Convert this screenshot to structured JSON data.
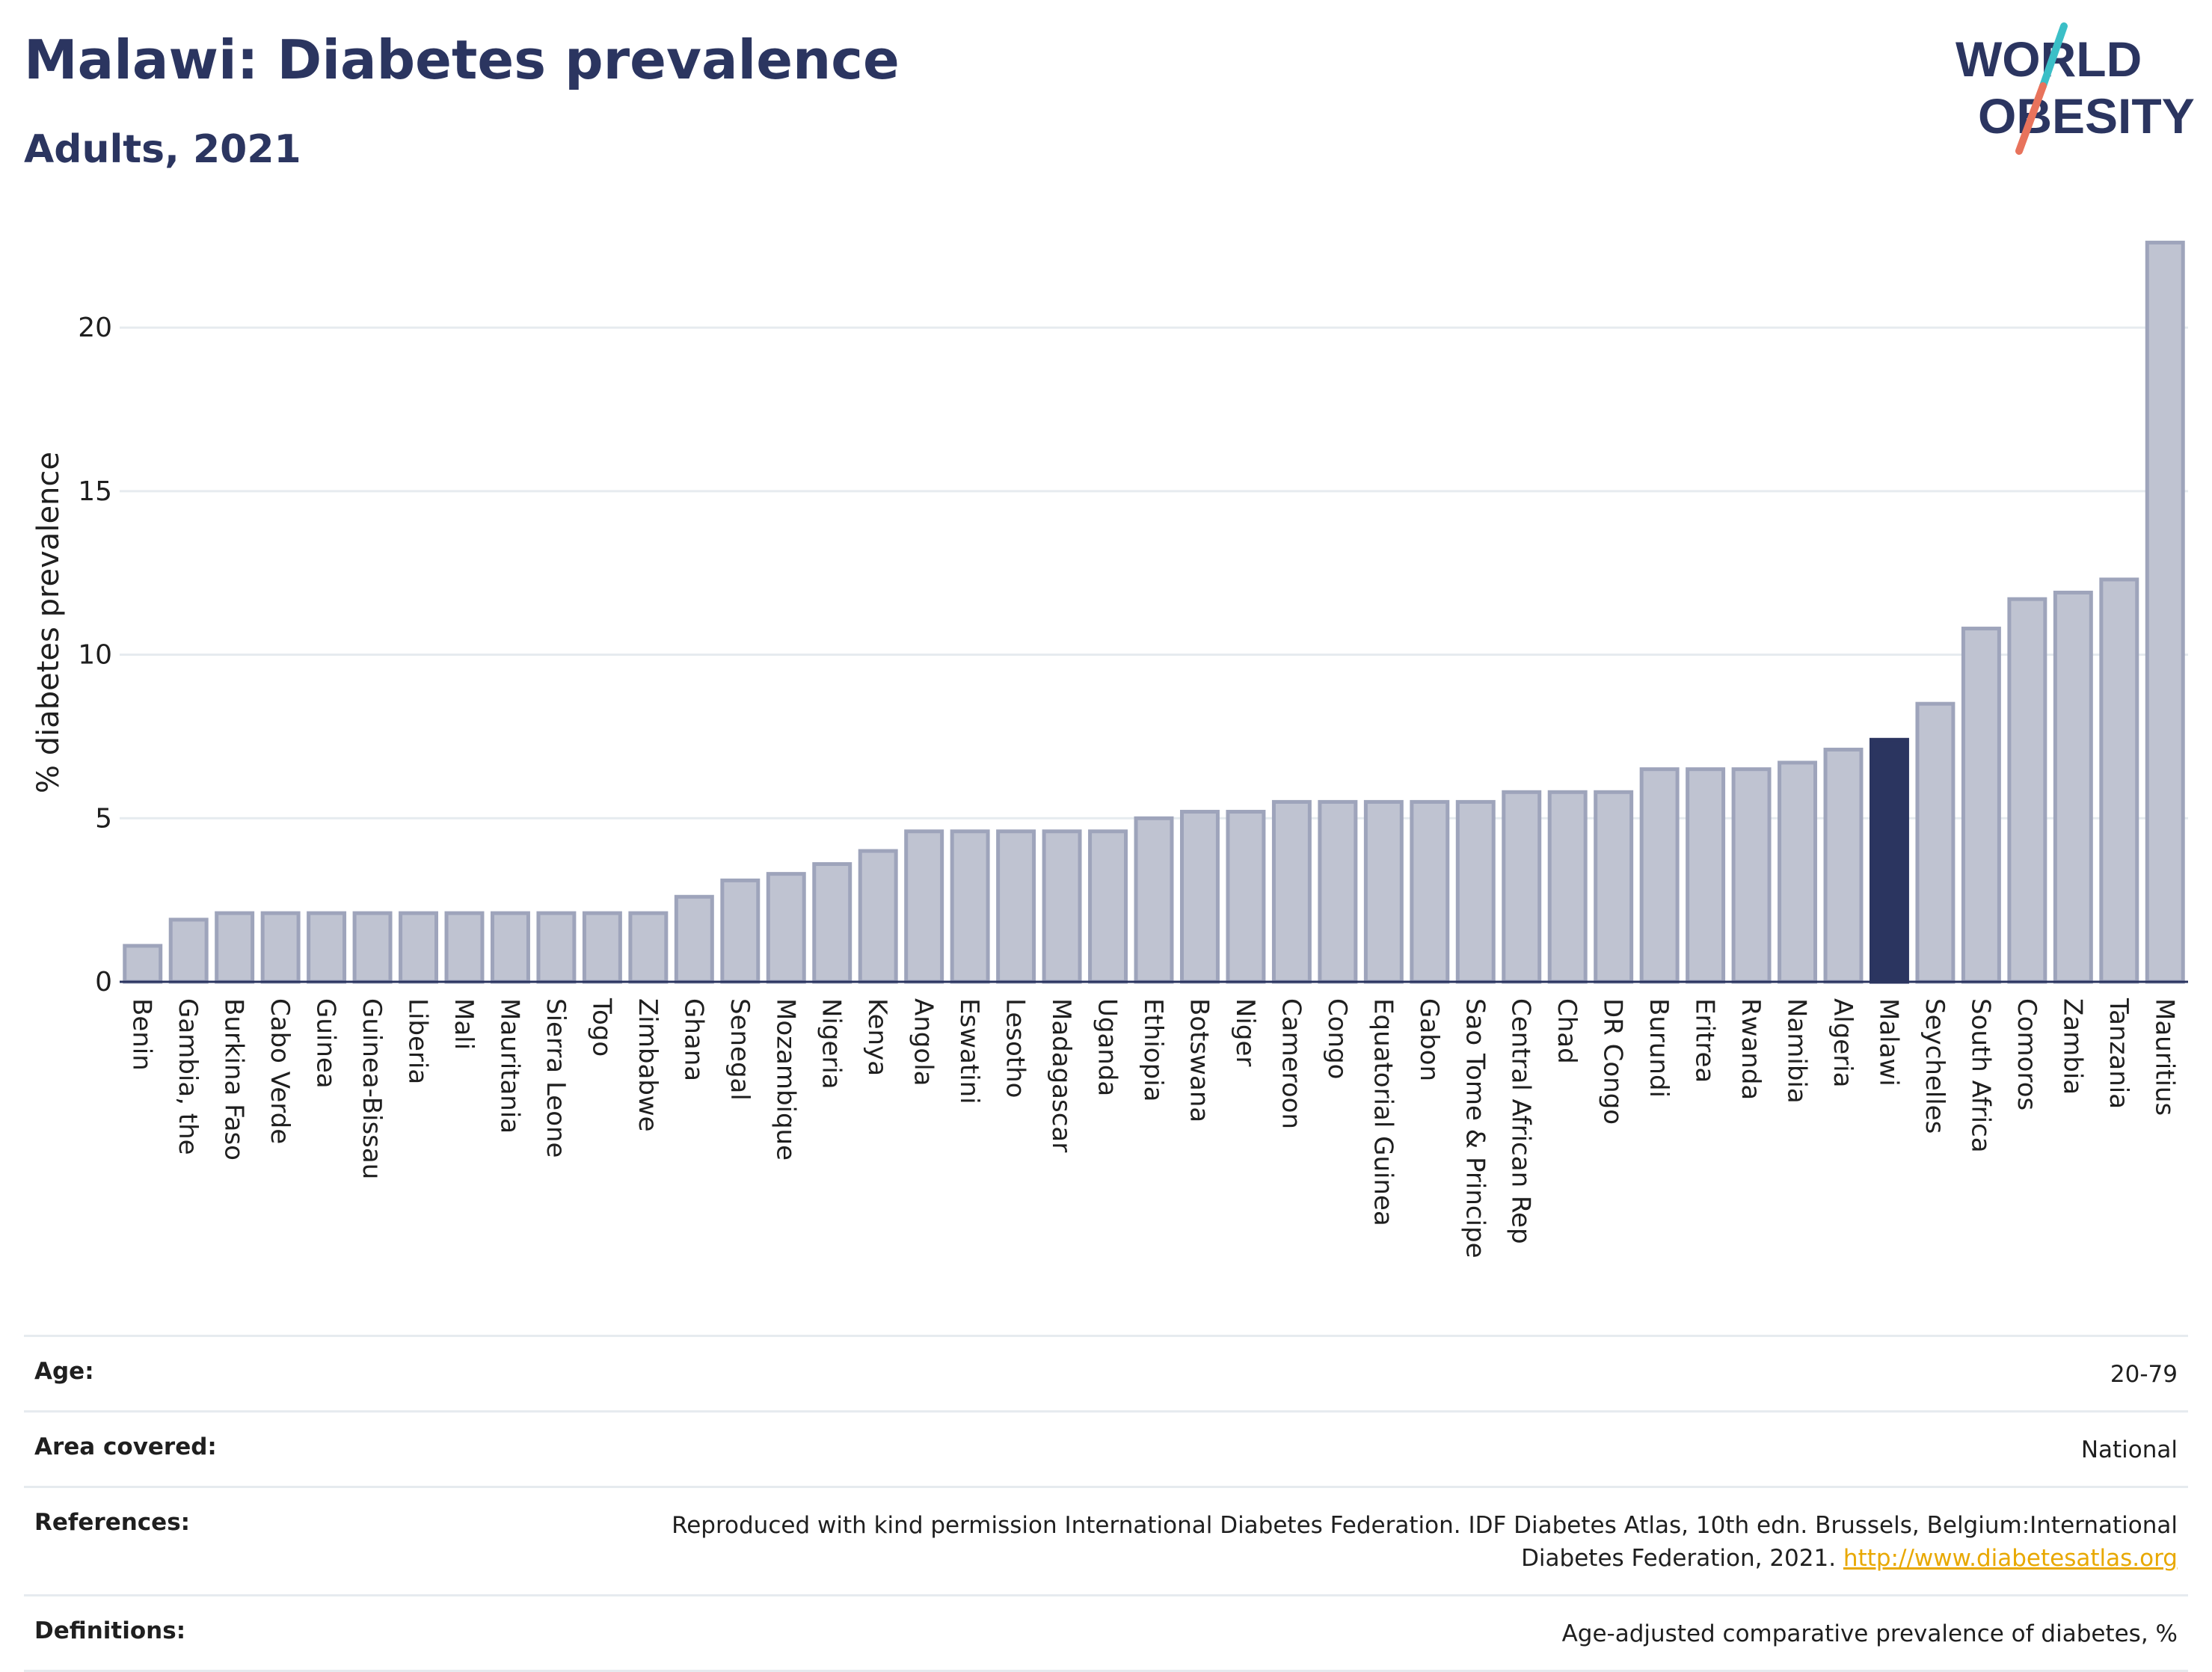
{
  "header": {
    "title": "Malawi: Diabetes prevalence",
    "subtitle": "Adults, 2021",
    "logo_line1": "WORLD",
    "logo_line2": "OBESITY"
  },
  "colors": {
    "bar_fill": "#bfc3d1",
    "bar_stroke": "#9ea4bb",
    "highlight_fill": "#2b3560",
    "title": "#2b3560",
    "logo_teal": "#3bbfc7",
    "logo_coral": "#e8735c",
    "link": "#e8a800"
  },
  "chart_data": {
    "type": "bar",
    "ylabel": "% diabetes prevalence",
    "ylim": [
      0,
      22.7
    ],
    "yticks": [
      0,
      5,
      10,
      15,
      20
    ],
    "grid": true,
    "highlight": "Malawi",
    "categories": [
      "Benin",
      "Gambia, the",
      "Burkina Faso",
      "Cabo Verde",
      "Guinea",
      "Guinea-Bissau",
      "Liberia",
      "Mali",
      "Mauritania",
      "Sierra Leone",
      "Togo",
      "Zimbabwe",
      "Ghana",
      "Senegal",
      "Mozambique",
      "Nigeria",
      "Kenya",
      "Angola",
      "Eswatini",
      "Lesotho",
      "Madagascar",
      "Uganda",
      "Ethiopia",
      "Botswana",
      "Niger",
      "Cameroon",
      "Congo",
      "Equatorial Guinea",
      "Gabon",
      "Sao Tome & Principe",
      "Central African Rep",
      "Chad",
      "DR Congo",
      "Burundi",
      "Eritrea",
      "Rwanda",
      "Namibia",
      "Algeria",
      "Malawi",
      "Seychelles",
      "South Africa",
      "Comoros",
      "Zambia",
      "Tanzania",
      "Mauritius"
    ],
    "values": [
      1.1,
      1.9,
      2.1,
      2.1,
      2.1,
      2.1,
      2.1,
      2.1,
      2.1,
      2.1,
      2.1,
      2.1,
      2.6,
      3.1,
      3.3,
      3.6,
      4.0,
      4.6,
      4.6,
      4.6,
      4.6,
      4.6,
      5.0,
      5.2,
      5.2,
      5.5,
      5.5,
      5.5,
      5.5,
      5.5,
      5.8,
      5.8,
      5.8,
      6.5,
      6.5,
      6.5,
      6.7,
      7.1,
      7.4,
      8.5,
      10.8,
      11.7,
      11.9,
      12.3,
      22.6
    ]
  },
  "info": {
    "age_label": "Age:",
    "age_value": "20-79",
    "area_label": "Area covered:",
    "area_value": "National",
    "references_label": "References:",
    "references_text": "Reproduced with kind permission International Diabetes Federation.  IDF Diabetes Atlas, 10th edn. Brussels, Belgium:International Diabetes Federation, 2021. ",
    "references_link": "http://www.diabetesatlas.org",
    "definitions_label": "Definitions:",
    "definitions_value": "Age-adjusted comparative prevalence of diabetes, %"
  }
}
